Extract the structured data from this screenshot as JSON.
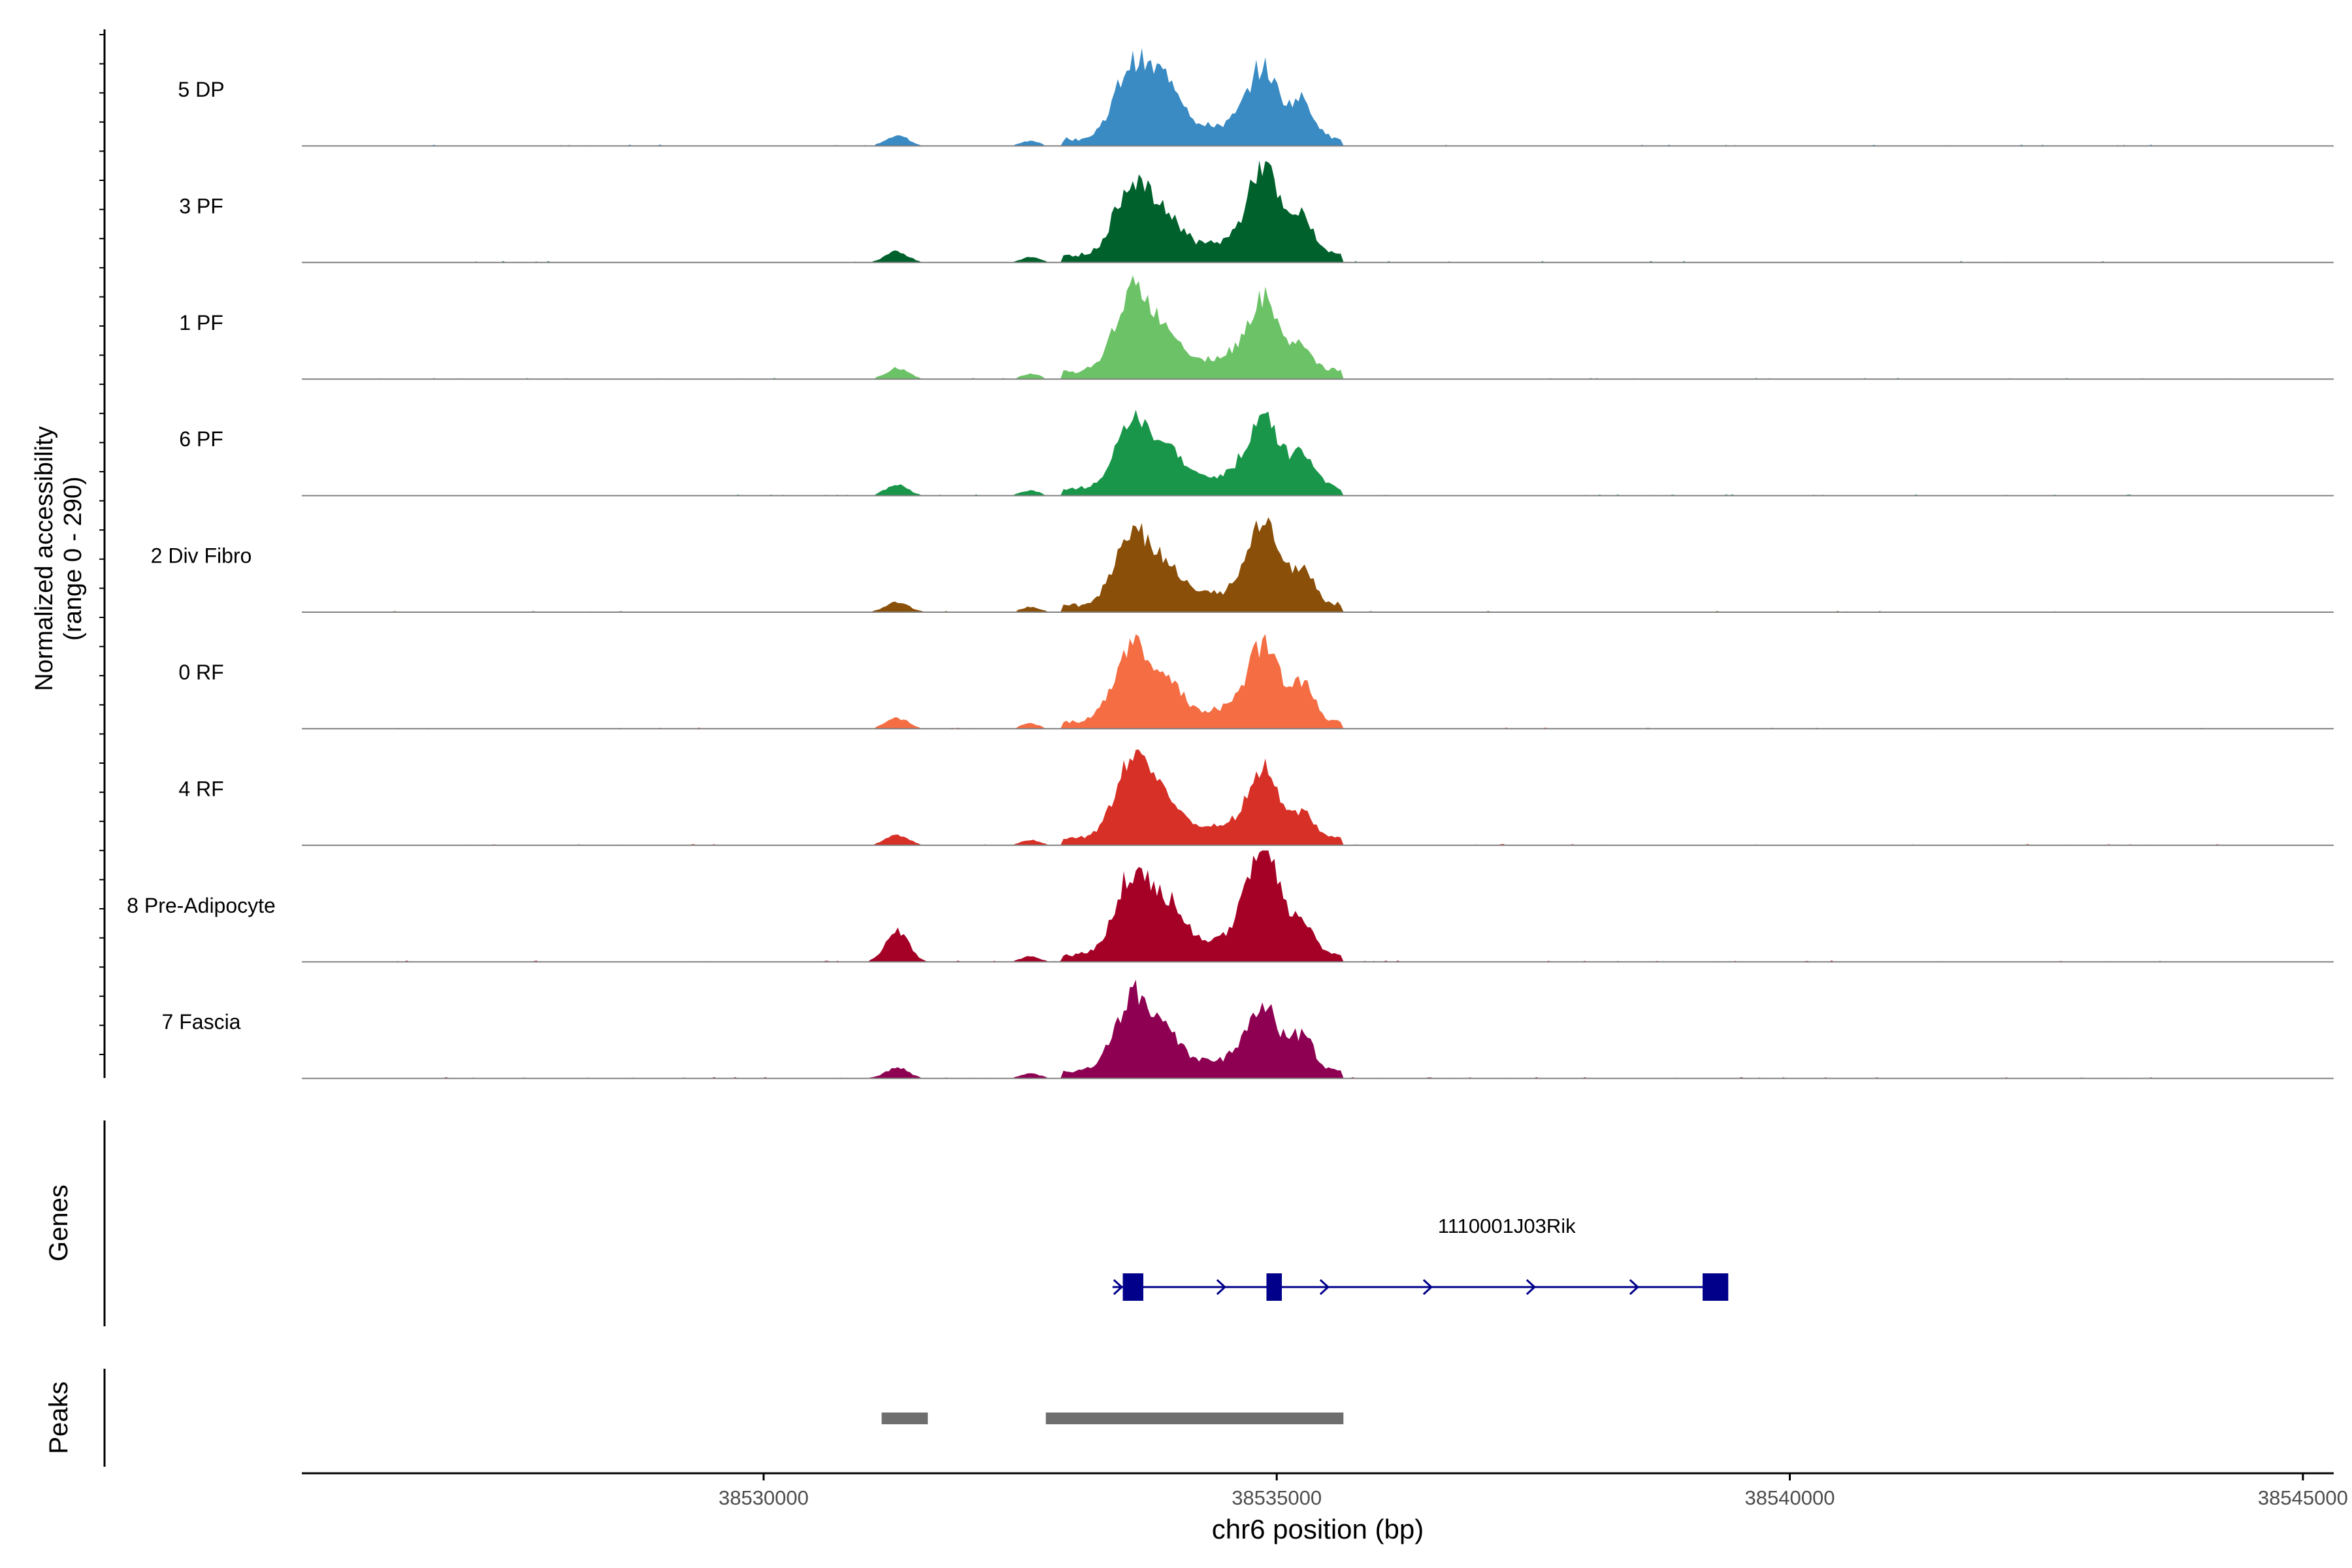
{
  "chart_data": {
    "type": "area",
    "title": "",
    "ylabel_line1": "Normalized accessibility",
    "ylabel_line2": "(range 0 - 290)",
    "ylim": [
      0,
      290
    ],
    "xlabel": "chr6 position (bp)",
    "xlim": [
      38525500,
      38545300
    ],
    "x_ticks": [
      38530000,
      38535000,
      38540000,
      38545000
    ],
    "x_tick_labels": [
      "38530000",
      "38535000",
      "38540000",
      "38545000"
    ],
    "series": [
      {
        "name": "5 DP",
        "color": "#3a8bc4"
      },
      {
        "name": "3 PF",
        "color": "#00612d"
      },
      {
        "name": "1 PF",
        "color": "#6cc266"
      },
      {
        "name": "6 PF",
        "color": "#199649"
      },
      {
        "name": "2 Div Fibro",
        "color": "#8a4f08"
      },
      {
        "name": "0 RF",
        "color": "#f46d43"
      },
      {
        "name": "4 RF",
        "color": "#d73027"
      },
      {
        "name": "8 Pre-Adipocyte",
        "color": "#a50026"
      },
      {
        "name": "7 Fascia",
        "color": "#8e0152"
      }
    ],
    "peak_heights_fraction": [
      [
        0.1,
        0.69,
        0.48,
        0.15,
        0.54,
        0.33
      ],
      [
        0.1,
        0.69,
        0.3,
        0.15,
        0.71,
        0.33
      ],
      [
        0.1,
        0.76,
        0.3,
        0.16,
        0.55,
        0.2
      ],
      [
        0.1,
        0.6,
        0.3,
        0.15,
        0.55,
        0.33
      ],
      [
        0.1,
        0.69,
        0.3,
        0.13,
        0.7,
        0.33
      ],
      [
        0.1,
        0.72,
        0.3,
        0.13,
        0.61,
        0.33
      ],
      [
        0.1,
        0.72,
        0.3,
        0.13,
        0.53,
        0.2
      ],
      [
        0.3,
        0.76,
        0.4,
        0.2,
        0.92,
        0.25
      ],
      [
        0.1,
        0.69,
        0.3,
        0.13,
        0.54,
        0.3
      ]
    ],
    "genes_track_label": "Genes",
    "gene": {
      "name": "1110001J03Rik",
      "strand": "+",
      "start": 38533400,
      "end": 38539300,
      "exons": [
        [
          38533500,
          38533700
        ],
        [
          38534900,
          38535050
        ],
        [
          38539150,
          38539400
        ]
      ]
    },
    "peaks_track_label": "Peaks",
    "peaks": [
      [
        38531150,
        38531600
      ],
      [
        38532750,
        38535650
      ]
    ],
    "colors": {
      "gene": "#00008b",
      "peak": "#6e6e6e",
      "baseline": "#808080"
    }
  }
}
